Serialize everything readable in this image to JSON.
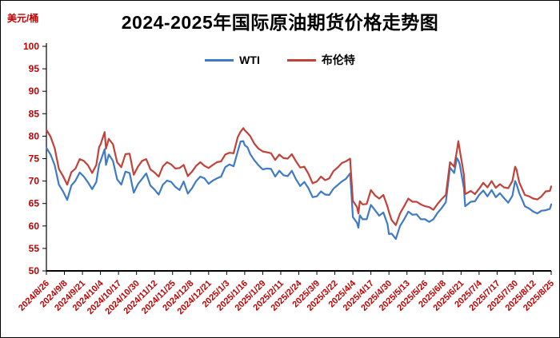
{
  "page": {
    "title": "2024-2025年国际原油期货价格走势图",
    "unit_label": "美元/桶"
  },
  "chart_data": {
    "type": "line",
    "title": "2024-2025年国际原油期货价格走势图",
    "ylabel": "美元/桶",
    "ylim": [
      50,
      100
    ],
    "ytick_step": 5,
    "x_max_day": 364,
    "grid": false,
    "legend_position": "top-center",
    "axis_label_color": "#c00000",
    "axis_line_color": "#000000",
    "x_tick_days": [
      0,
      13,
      26,
      39,
      52,
      65,
      78,
      91,
      104,
      117,
      130,
      143,
      156,
      169,
      182,
      195,
      208,
      221,
      234,
      247,
      260,
      273,
      286,
      299,
      312,
      325,
      338,
      351,
      364
    ],
    "x_tick_labels": [
      "2024/8/26",
      "2024/9/8",
      "2024/9/21",
      "2024/10/4",
      "2024/10/17",
      "2024/10/30",
      "2024/11/12",
      "2024/11/25",
      "2024/12/8",
      "2024/12/21",
      "2025/1/3",
      "2025/1/16",
      "2025/1/29",
      "2025/2/11",
      "2025/2/24",
      "2025/3/9",
      "2025/3/22",
      "2025/4/4",
      "2025/4/17",
      "2025/4/30",
      "2025/5/13",
      "2025/5/26",
      "2025/6/8",
      "2025/6/21",
      "2025/7/4",
      "2025/7/17",
      "2025/7/30",
      "2025/8/12",
      "2025/8/25"
    ],
    "x_days": [
      0,
      3,
      6,
      9,
      12,
      15,
      18,
      21,
      24,
      27,
      30,
      33,
      36,
      38,
      39,
      42,
      43,
      45,
      48,
      51,
      54,
      57,
      60,
      63,
      66,
      69,
      72,
      75,
      78,
      81,
      84,
      87,
      90,
      93,
      96,
      99,
      102,
      105,
      108,
      111,
      114,
      117,
      120,
      123,
      126,
      129,
      132,
      135,
      138,
      140,
      142,
      143,
      145,
      147,
      150,
      153,
      156,
      159,
      162,
      165,
      168,
      171,
      174,
      177,
      180,
      183,
      186,
      189,
      192,
      195,
      198,
      201,
      204,
      207,
      210,
      213,
      216,
      219,
      220,
      221,
      224,
      225,
      226,
      228,
      231,
      234,
      237,
      240,
      243,
      246,
      247,
      249,
      252,
      255,
      258,
      261,
      264,
      267,
      270,
      273,
      276,
      279,
      282,
      285,
      288,
      291,
      294,
      296,
      297,
      298,
      301,
      302,
      306,
      309,
      312,
      315,
      318,
      321,
      324,
      327,
      330,
      333,
      336,
      338,
      339,
      341,
      344,
      345,
      348,
      351,
      354,
      357,
      360,
      363,
      364
    ],
    "series": [
      {
        "name": "WTI",
        "color": "#3f7ac5",
        "values": [
          77.4,
          75.9,
          73.5,
          69.2,
          67.7,
          65.8,
          69.0,
          70.1,
          71.9,
          71.0,
          69.7,
          68.2,
          69.8,
          73.7,
          74.4,
          77.1,
          73.6,
          75.9,
          74.5,
          70.4,
          69.2,
          72.1,
          71.8,
          67.4,
          69.3,
          70.5,
          71.7,
          69.0,
          68.1,
          67.0,
          69.2,
          70.1,
          69.8,
          68.7,
          68.0,
          69.9,
          67.2,
          68.4,
          70.0,
          71.0,
          70.6,
          69.4,
          70.1,
          70.6,
          71.0,
          73.1,
          73.7,
          73.3,
          76.6,
          78.8,
          78.9,
          78.0,
          77.5,
          76.0,
          74.6,
          73.5,
          72.6,
          72.8,
          72.7,
          71.0,
          72.3,
          71.3,
          71.1,
          72.3,
          70.4,
          68.9,
          69.8,
          68.4,
          66.4,
          66.6,
          67.7,
          67.0,
          66.9,
          68.3,
          69.1,
          69.9,
          70.5,
          71.7,
          66.9,
          62.0,
          60.7,
          59.6,
          62.4,
          61.5,
          61.5,
          64.7,
          63.5,
          62.3,
          63.0,
          60.4,
          58.2,
          58.3,
          57.1,
          60.0,
          61.5,
          63.2,
          62.5,
          62.6,
          61.5,
          61.5,
          60.9,
          61.5,
          62.9,
          64.0,
          65.3,
          73.0,
          71.8,
          75.1,
          74.6,
          73.8,
          68.5,
          64.4,
          65.4,
          65.5,
          66.9,
          67.9,
          66.6,
          68.0,
          66.4,
          67.3,
          66.2,
          65.2,
          66.7,
          70.0,
          69.3,
          67.3,
          65.2,
          64.4,
          63.9,
          63.2,
          62.8,
          63.4,
          63.5,
          63.8,
          64.8
        ]
      },
      {
        "name": "布伦特",
        "color": "#c2423a",
        "values": [
          81.4,
          79.9,
          77.3,
          72.7,
          71.1,
          69.2,
          72.0,
          72.8,
          74.9,
          74.5,
          73.5,
          71.8,
          73.6,
          77.6,
          78.1,
          80.9,
          77.2,
          79.4,
          78.2,
          74.2,
          73.1,
          76.0,
          76.1,
          71.4,
          73.2,
          74.5,
          74.9,
          72.6,
          71.9,
          71.0,
          73.3,
          74.2,
          73.7,
          72.8,
          72.9,
          73.6,
          71.1,
          72.1,
          73.4,
          74.2,
          73.4,
          72.9,
          73.6,
          74.2,
          74.4,
          75.9,
          76.3,
          76.2,
          79.8,
          81.0,
          81.8,
          81.3,
          80.7,
          80.0,
          78.3,
          77.2,
          76.6,
          76.4,
          76.2,
          74.7,
          75.9,
          75.1,
          75.0,
          76.0,
          74.4,
          73.0,
          73.2,
          71.6,
          69.5,
          69.9,
          71.0,
          70.2,
          70.6,
          72.2,
          73.0,
          74.0,
          74.4,
          75.0,
          70.1,
          65.6,
          64.2,
          62.8,
          65.5,
          64.8,
          64.9,
          68.0,
          66.8,
          66.1,
          66.9,
          64.3,
          63.1,
          61.3,
          60.2,
          62.8,
          64.4,
          66.1,
          65.4,
          65.4,
          64.8,
          64.4,
          64.2,
          63.6,
          64.9,
          66.0,
          66.9,
          74.2,
          73.2,
          76.7,
          78.9,
          77.0,
          71.5,
          67.1,
          67.8,
          67.1,
          68.3,
          69.6,
          68.6,
          70.0,
          68.5,
          69.3,
          68.6,
          68.4,
          70.0,
          73.2,
          72.5,
          69.7,
          67.6,
          66.9,
          66.6,
          66.1,
          65.9,
          66.6,
          67.7,
          67.8,
          68.8
        ]
      }
    ]
  }
}
